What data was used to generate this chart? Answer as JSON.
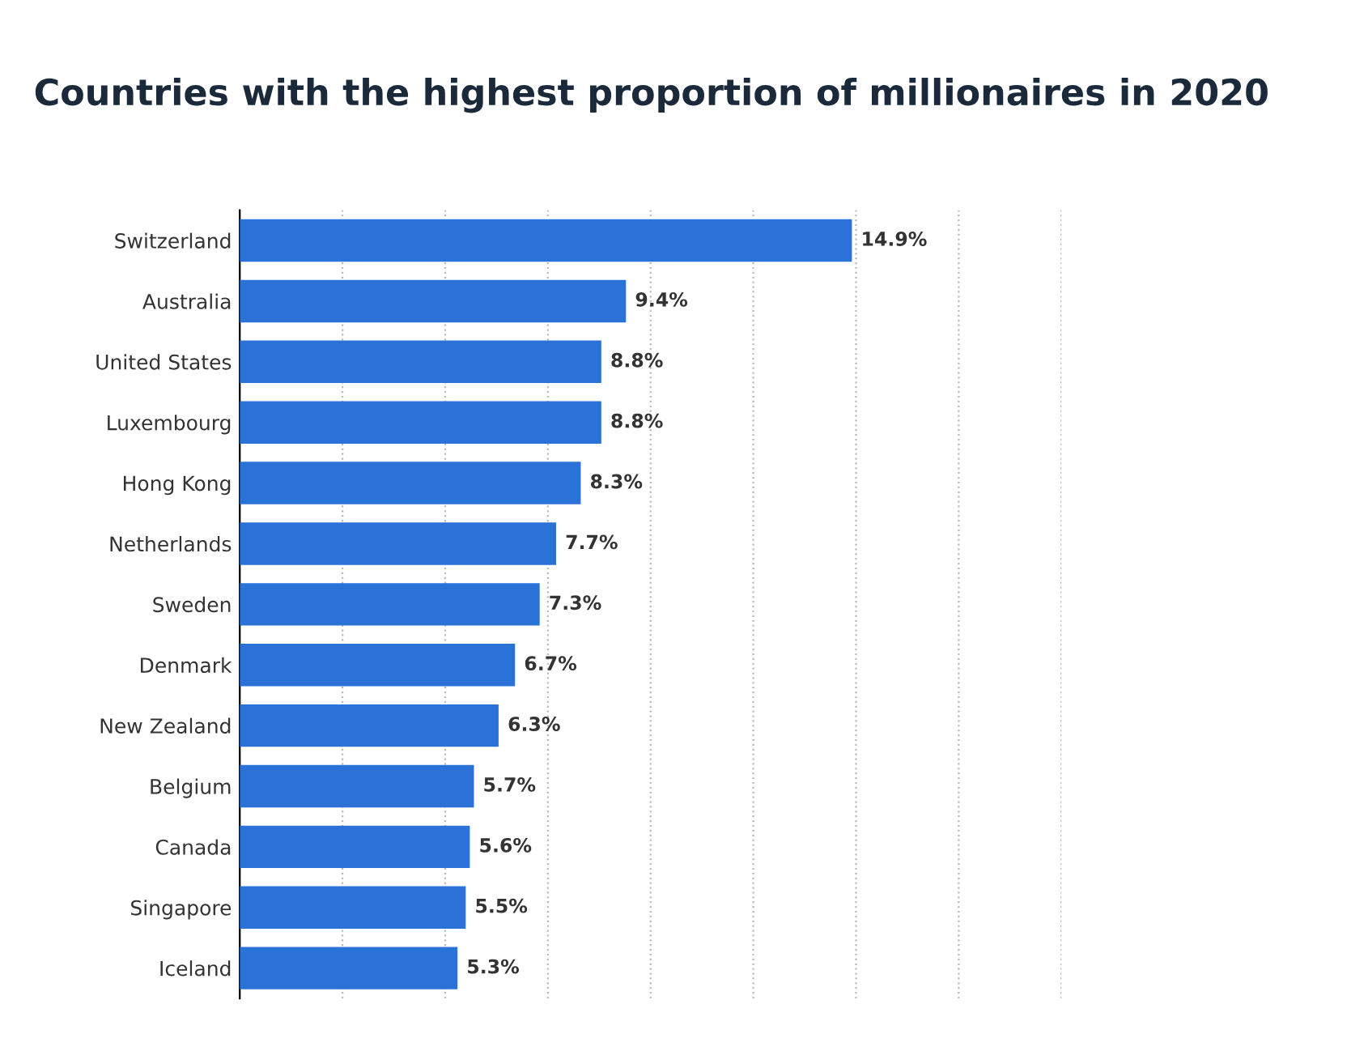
{
  "chart_data": {
    "type": "bar",
    "orientation": "horizontal",
    "title": "Countries with the highest proportion of millionaires in 2020",
    "categories": [
      "Switzerland",
      "Australia",
      "United States",
      "Luxembourg",
      "Hong Kong",
      "Netherlands",
      "Sweden",
      "Denmark",
      "New Zealand",
      "Belgium",
      "Canada",
      "Singapore",
      "Iceland"
    ],
    "values": [
      14.9,
      9.4,
      8.8,
      8.8,
      8.3,
      7.7,
      7.3,
      6.7,
      6.3,
      5.7,
      5.6,
      5.5,
      5.3
    ],
    "value_labels": [
      "14.9%",
      "9.4%",
      "8.8%",
      "8.8%",
      "8.3%",
      "7.7%",
      "7.3%",
      "6.7%",
      "6.3%",
      "5.7%",
      "5.6%",
      "5.5%",
      "5.3%"
    ],
    "color": "#2a72d8",
    "xlim": [
      0,
      20
    ],
    "xticks": [
      {
        "value": 0,
        "label": null
      },
      {
        "value": 2.5,
        "label": null
      },
      {
        "value": 5,
        "label": null
      },
      {
        "value": 7.5,
        "label": null
      },
      {
        "value": 10,
        "label": null
      },
      {
        "value": 12.5,
        "label": null
      },
      {
        "value": 15,
        "label": null
      },
      {
        "value": 17.5,
        "label": null
      },
      {
        "value": 20,
        "label": null
      }
    ],
    "grid": "x",
    "legend": false,
    "tick_labels": "y"
  }
}
